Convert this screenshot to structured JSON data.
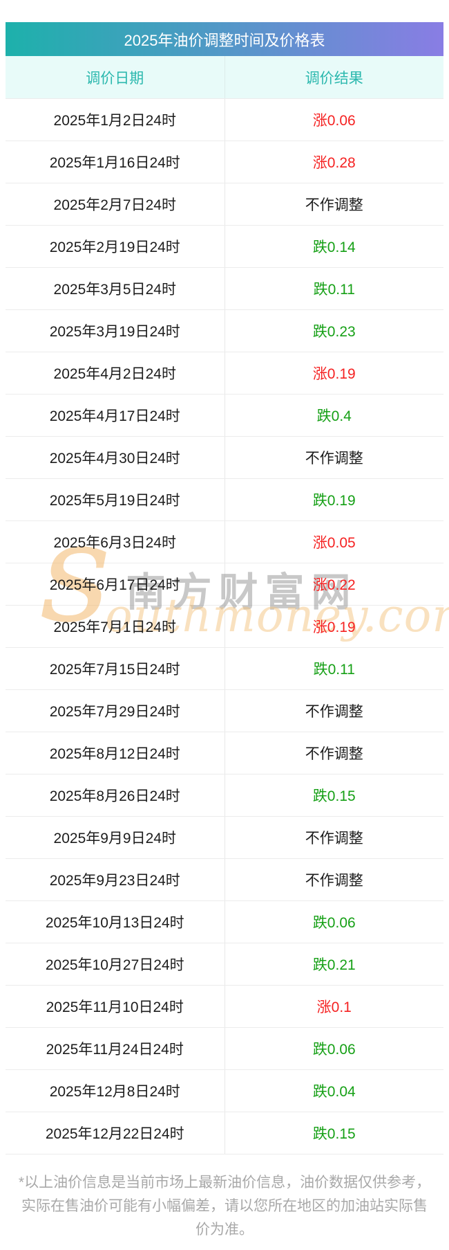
{
  "table": {
    "title": "2025年油价调整时间及价格表",
    "columns": [
      "调价日期",
      "调价结果"
    ],
    "rows": [
      {
        "date": "2025年1月2日24时",
        "result": "涨0.06",
        "trend": "up"
      },
      {
        "date": "2025年1月16日24时",
        "result": "涨0.28",
        "trend": "up"
      },
      {
        "date": "2025年2月7日24时",
        "result": "不作调整",
        "trend": "none"
      },
      {
        "date": "2025年2月19日24时",
        "result": "跌0.14",
        "trend": "down"
      },
      {
        "date": "2025年3月5日24时",
        "result": "跌0.11",
        "trend": "down"
      },
      {
        "date": "2025年3月19日24时",
        "result": "跌0.23",
        "trend": "down"
      },
      {
        "date": "2025年4月2日24时",
        "result": "涨0.19",
        "trend": "up"
      },
      {
        "date": "2025年4月17日24时",
        "result": "跌0.4",
        "trend": "down"
      },
      {
        "date": "2025年4月30日24时",
        "result": "不作调整",
        "trend": "none"
      },
      {
        "date": "2025年5月19日24时",
        "result": "跌0.19",
        "trend": "down"
      },
      {
        "date": "2025年6月3日24时",
        "result": "涨0.05",
        "trend": "up"
      },
      {
        "date": "2025年6月17日24时",
        "result": "涨0.22",
        "trend": "up"
      },
      {
        "date": "2025年7月1日24时",
        "result": "涨0.19",
        "trend": "up"
      },
      {
        "date": "2025年7月15日24时",
        "result": "跌0.11",
        "trend": "down"
      },
      {
        "date": "2025年7月29日24时",
        "result": "不作调整",
        "trend": "none"
      },
      {
        "date": "2025年8月12日24时",
        "result": "不作调整",
        "trend": "none"
      },
      {
        "date": "2025年8月26日24时",
        "result": "跌0.15",
        "trend": "down"
      },
      {
        "date": "2025年9月9日24时",
        "result": "不作调整",
        "trend": "none"
      },
      {
        "date": "2025年9月23日24时",
        "result": "不作调整",
        "trend": "none"
      },
      {
        "date": "2025年10月13日24时",
        "result": "跌0.06",
        "trend": "down"
      },
      {
        "date": "2025年10月27日24时",
        "result": "跌0.21",
        "trend": "down"
      },
      {
        "date": "2025年11月10日24时",
        "result": "涨0.1",
        "trend": "up"
      },
      {
        "date": "2025年11月24日24时",
        "result": "跌0.06",
        "trend": "down"
      },
      {
        "date": "2025年12月8日24时",
        "result": "跌0.04",
        "trend": "down"
      },
      {
        "date": "2025年12月22日24时",
        "result": "跌0.15",
        "trend": "down"
      }
    ],
    "colors": {
      "title_gradient_start": "#1db1ab",
      "title_gradient_end": "#897de4",
      "header_bg": "#e8fbf9",
      "header_text": "#2bb8ae",
      "up": "#f52222",
      "down": "#16a016",
      "neutral": "#1c1c1c"
    }
  },
  "watermark": {
    "cn": "南方财富网",
    "en_initial": "s",
    "en_rest": "outhmoney.com"
  },
  "footer": {
    "note": "*以上油价信息是当前市场上最新油价信息，油价数据仅供参考，实际在售油价可能有小幅偏差，请以您所在地区的加油站实际售价为准。"
  }
}
